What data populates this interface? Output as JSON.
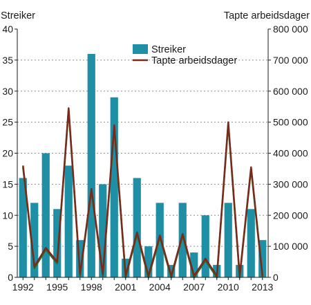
{
  "chart_data": {
    "type": "bar+line",
    "title": "",
    "left_axis_title": "Streiker",
    "right_axis_title": "Tapte arbeidsdager",
    "x": [
      1992,
      1993,
      1994,
      1995,
      1996,
      1997,
      1998,
      1999,
      2000,
      2001,
      2002,
      2003,
      2004,
      2005,
      2006,
      2007,
      2008,
      2009,
      2010,
      2011,
      2012,
      2013
    ],
    "x_tick_labels": [
      "1992",
      "1995",
      "1998",
      "2001",
      "2004",
      "2007",
      "2010",
      "2013"
    ],
    "left_ylim": [
      0,
      40
    ],
    "left_ticks": [
      0,
      5,
      10,
      15,
      20,
      25,
      30,
      35,
      40
    ],
    "left_tick_labels": [
      "0",
      "5",
      "10",
      "15",
      "20",
      "25",
      "30",
      "35",
      "40"
    ],
    "right_ylim": [
      0,
      800000
    ],
    "right_ticks": [
      0,
      100000,
      200000,
      300000,
      400000,
      500000,
      600000,
      700000,
      800000
    ],
    "right_tick_labels": [
      "0",
      "100 000",
      "200 000",
      "300 000",
      "400 000",
      "500 000",
      "600 000",
      "700 000",
      "800 000"
    ],
    "grid": true,
    "legend_position": "top-center",
    "series": [
      {
        "name": "Streiker",
        "kind": "bar",
        "axis": "left",
        "color": "#1f8fa6",
        "values": [
          16,
          12,
          20,
          11,
          18,
          6,
          36,
          15,
          29,
          3,
          16,
          5,
          12,
          2,
          12,
          4,
          10,
          2,
          12,
          2,
          11,
          6
        ]
      },
      {
        "name": "Tapte arbeidsdager",
        "kind": "line",
        "axis": "right",
        "color": "#7a2a1a",
        "shadow_color": "#2e6b2e",
        "values": [
          360000,
          35000,
          95000,
          50000,
          545000,
          10000,
          285000,
          10000,
          490000,
          5000,
          145000,
          5000,
          135000,
          5000,
          140000,
          5000,
          60000,
          5000,
          500000,
          5000,
          355000,
          5000
        ]
      }
    ]
  }
}
